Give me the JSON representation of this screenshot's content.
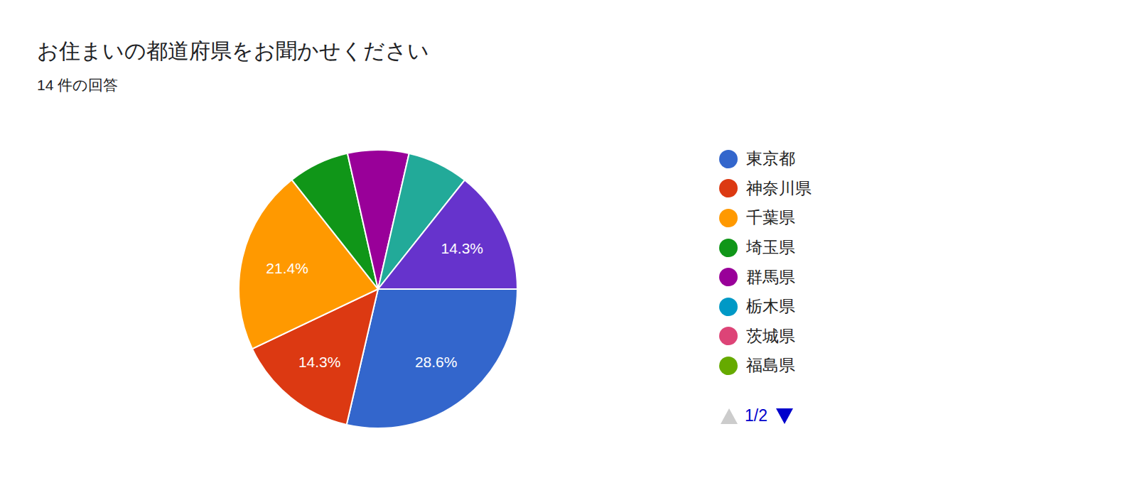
{
  "chart_data": {
    "type": "pie",
    "title": "お住まいの都道府県をお聞かせください",
    "subtitle": "14 件の回答",
    "categories": [
      "東京都",
      "神奈川県",
      "千葉県",
      "埼玉県",
      "群馬県",
      "栃木県",
      "茨城県",
      "福島県",
      null,
      null
    ],
    "values": [
      28.6,
      14.3,
      21.4,
      7.1,
      7.1,
      0,
      0,
      0,
      7.1,
      14.3
    ],
    "colors": [
      "#3366cc",
      "#dc3912",
      "#ff9900",
      "#109618",
      "#990099",
      "#0099c6",
      "#dd4477",
      "#66aa00",
      "#22aa99",
      "#6633cc"
    ],
    "value_labels": [
      "28.6%",
      "14.3%",
      "21.4%",
      null,
      null,
      null,
      null,
      null,
      null,
      "14.3%"
    ],
    "data_labels": true,
    "legend": "right",
    "legend_pager": "1/2"
  }
}
